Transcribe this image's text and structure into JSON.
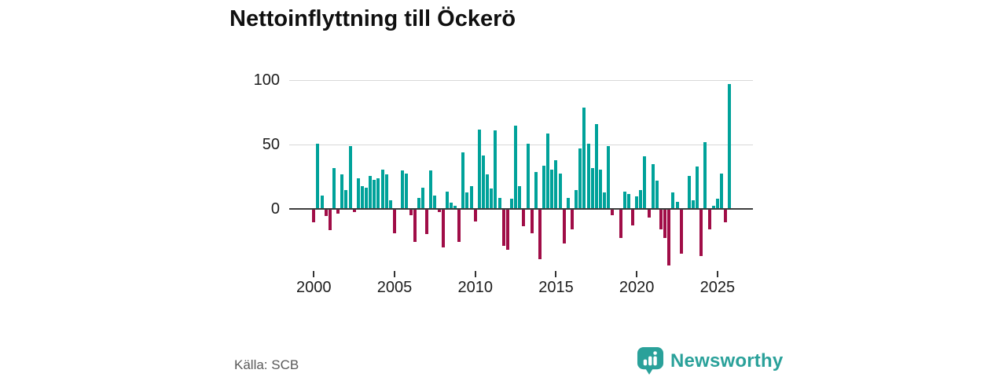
{
  "header": {
    "title": "Nettoinflyttning till Öckerö"
  },
  "footer": {
    "source_label": "Källa: SCB",
    "brand_name": "Newsworthy",
    "brand_color": "#2aa19a"
  },
  "chart_data": {
    "type": "bar",
    "title": "Nettoinflyttning till Öckerö",
    "frequency": "quarterly",
    "x_start": "2000 Q1",
    "x_end": "2025 Q4",
    "x_tick_labels": [
      "2000",
      "2005",
      "2010",
      "2015",
      "2020",
      "2025"
    ],
    "y_ticks": [
      0,
      50,
      100
    ],
    "y_tick_labels": [
      "0",
      "50",
      "100"
    ],
    "ylim": [
      -50,
      105
    ],
    "grid": "horizontal",
    "legend": "none",
    "positive_color": "#00a29a",
    "negative_color": "#a00d47",
    "values": [
      -10,
      50,
      10,
      -5,
      -16,
      31,
      -3,
      26,
      14,
      48,
      -2,
      23,
      17,
      16,
      25,
      22,
      23,
      30,
      26,
      6,
      -18,
      0,
      29,
      27,
      -4,
      -25,
      8,
      16,
      -19,
      29,
      10,
      -2,
      -29,
      13,
      4,
      2,
      -25,
      43,
      12,
      17,
      -9,
      61,
      41,
      26,
      15,
      60,
      8,
      -28,
      -31,
      7,
      64,
      17,
      -13,
      50,
      -18,
      28,
      -38,
      33,
      58,
      30,
      37,
      27,
      -26,
      8,
      -15,
      14,
      46,
      78,
      50,
      31,
      65,
      30,
      12,
      48,
      -4,
      0,
      -22,
      13,
      11,
      -12,
      9,
      14,
      40,
      -6,
      34,
      21,
      -15,
      -22,
      -43,
      12,
      5,
      -34,
      0,
      25,
      6,
      32,
      -36,
      51,
      -15,
      2,
      7,
      27,
      -10,
      96
    ]
  }
}
